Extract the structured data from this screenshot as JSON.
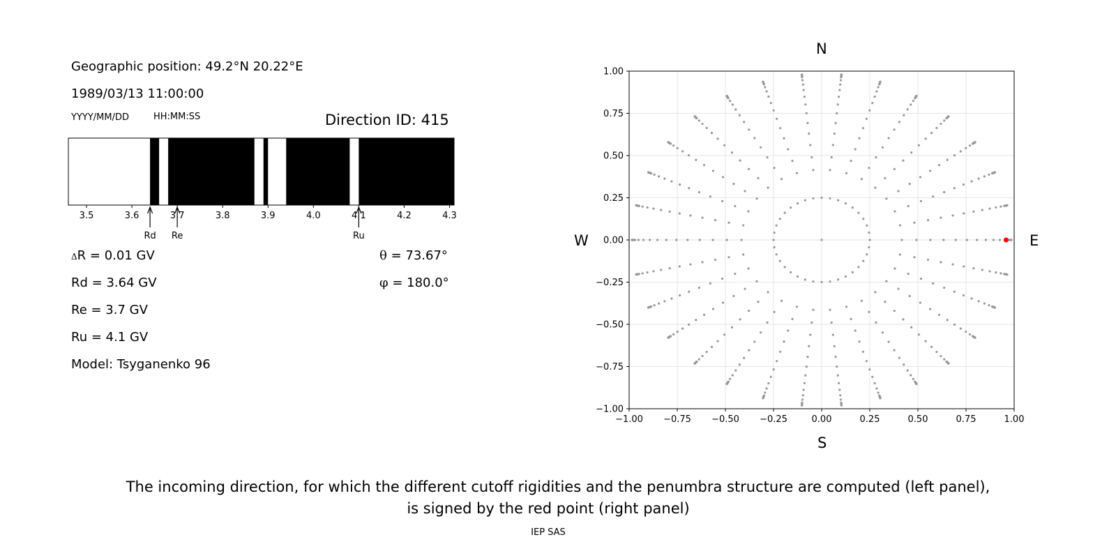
{
  "header": {
    "position_label": "Geographic position: 49.2°N 20.22°E",
    "datetime": "1989/03/13 11:00:00",
    "date_format": "YYYY/MM/DD",
    "time_format": "HH:MM:SS",
    "direction_id": "Direction ID: 415"
  },
  "params": {
    "delta_r_symbol": "Δ",
    "delta_r": "R = 0.01 GV",
    "rd": "Rd = 3.64 GV",
    "re": "Re = 3.7 GV",
    "ru": "Ru = 4.1 GV",
    "model": "Model: Tsyganenko 96",
    "theta_symbol": "θ",
    "theta": " = 73.67°",
    "phi_symbol": "φ",
    "phi": " = 180.0°"
  },
  "chart_data": [
    {
      "type": "penumbra",
      "xlim": [
        3.46,
        4.31
      ],
      "ticks": [
        3.5,
        3.6,
        3.7,
        3.8,
        3.9,
        4.0,
        4.1,
        4.2,
        4.3
      ],
      "tick_labels": [
        "3.5",
        "3.6",
        "3.7",
        "3.8",
        "3.9",
        "4.0",
        "4.1",
        "4.2",
        "4.3"
      ],
      "black_bands": [
        [
          3.64,
          3.66
        ],
        [
          3.68,
          3.87
        ],
        [
          3.89,
          3.9
        ],
        [
          3.94,
          4.08
        ],
        [
          4.1,
          4.31
        ]
      ],
      "markers": [
        {
          "label": "Rd",
          "value": 3.64
        },
        {
          "label": "Re",
          "value": 3.7
        },
        {
          "label": "Ru",
          "value": 4.1
        }
      ]
    },
    {
      "type": "scatter",
      "xlim": [
        -1.0,
        1.0
      ],
      "ylim": [
        -1.0,
        1.0
      ],
      "xticks": [
        "−1.00",
        "−0.75",
        "−0.50",
        "−0.25",
        "0.00",
        "0.25",
        "0.50",
        "0.75",
        "1.00"
      ],
      "yticks": [
        "1.00",
        "0.75",
        "0.50",
        "0.25",
        "0.00",
        "−0.25",
        "−0.50",
        "−0.75",
        "−1.00"
      ],
      "grid": true,
      "compass": {
        "north": "N",
        "south": "S",
        "west": "W",
        "east": "E"
      },
      "grid_points_color": "#999999",
      "selected_point": {
        "x": 0.958,
        "y": 0.0,
        "color": "#ff0000"
      }
    }
  ],
  "footer": {
    "caption_line1": "The incoming direction, for which the different cutoff rigidities and the penumbra structure are computed (left panel),",
    "caption_line2": "is signed by the red point (right panel)",
    "credit": "IEP SAS"
  }
}
